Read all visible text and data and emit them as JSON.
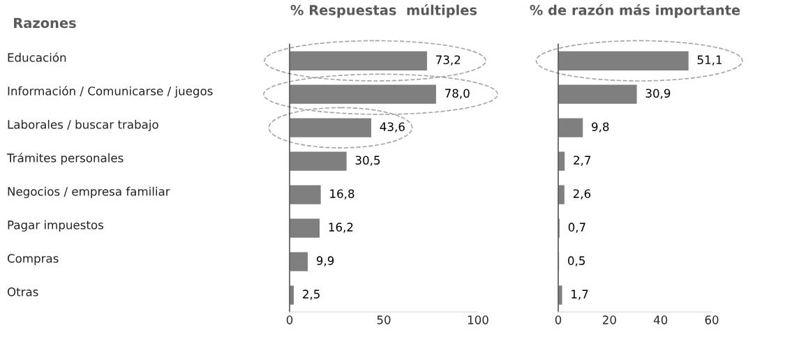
{
  "chart_data": [
    {
      "type": "bar",
      "orientation": "horizontal",
      "title": "% Respuestas  múltiples",
      "ylabel": "Razones",
      "categories": [
        "Educación",
        "Información / Comunicarse / juegos",
        "Laborales / buscar trabajo",
        "Trámites personales",
        "Negocios / empresa familiar",
        "Pagar impuestos",
        "Compras",
        "Otras"
      ],
      "series": [
        {
          "color": "#7f7f7f",
          "values": [
            73.2,
            78.0,
            43.6,
            30.5,
            16.8,
            16.2,
            9.9,
            2.5
          ],
          "value_labels": [
            "73,2",
            "78,0",
            "43,6",
            "30,5",
            "16,8",
            "16,2",
            "9,9",
            "2,5"
          ]
        }
      ],
      "xlim": [
        0,
        100
      ],
      "xticks": [
        0,
        50,
        100
      ],
      "grid": false,
      "legend": false
    },
    {
      "type": "bar",
      "orientation": "horizontal",
      "title": "% de razón más importante",
      "categories": [
        null,
        null,
        null,
        null,
        null,
        null,
        null,
        null
      ],
      "series": [
        {
          "color": "#7f7f7f",
          "values": [
            51.1,
            30.9,
            9.8,
            2.7,
            2.6,
            0.7,
            0.5,
            1.7
          ],
          "value_labels": [
            "51,1",
            "30,9",
            "9,8",
            "2,7",
            "2,6",
            "0,7",
            "0,5",
            "1,7"
          ]
        }
      ],
      "xlim": [
        0,
        60
      ],
      "xticks": [
        0,
        20,
        40,
        60
      ],
      "tick_labels": "x",
      "grid": false,
      "legend": false
    }
  ]
}
